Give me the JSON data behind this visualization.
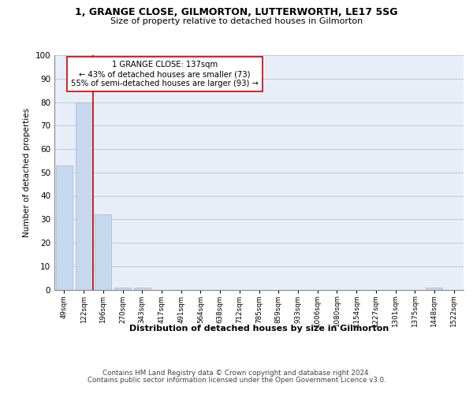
{
  "title1": "1, GRANGE CLOSE, GILMORTON, LUTTERWORTH, LE17 5SG",
  "title2": "Size of property relative to detached houses in Gilmorton",
  "xlabel": "Distribution of detached houses by size in Gilmorton",
  "ylabel": "Number of detached properties",
  "categories": [
    "49sqm",
    "122sqm",
    "196sqm",
    "270sqm",
    "343sqm",
    "417sqm",
    "491sqm",
    "564sqm",
    "638sqm",
    "712sqm",
    "785sqm",
    "859sqm",
    "933sqm",
    "1006sqm",
    "1080sqm",
    "1154sqm",
    "1227sqm",
    "1301sqm",
    "1375sqm",
    "1448sqm",
    "1522sqm"
  ],
  "values": [
    53,
    80,
    32,
    1,
    1,
    0,
    0,
    0,
    0,
    0,
    0,
    0,
    0,
    0,
    0,
    0,
    0,
    0,
    0,
    1,
    0
  ],
  "bar_color": "#c5d8ed",
  "bar_edge_color": "#a0b8d0",
  "vline_x": 1.5,
  "vline_color": "#cc0000",
  "annotation_text": "1 GRANGE CLOSE: 137sqm\n← 43% of detached houses are smaller (73)\n55% of semi-detached houses are larger (93) →",
  "annotation_box_color": "#ffffff",
  "annotation_box_edge": "#cc0000",
  "ylim": [
    0,
    100
  ],
  "yticks": [
    0,
    10,
    20,
    30,
    40,
    50,
    60,
    70,
    80,
    90,
    100
  ],
  "grid_color": "#c0c8d8",
  "background_color": "#e8eef8",
  "footer1": "Contains HM Land Registry data © Crown copyright and database right 2024.",
  "footer2": "Contains public sector information licensed under the Open Government Licence v3.0."
}
